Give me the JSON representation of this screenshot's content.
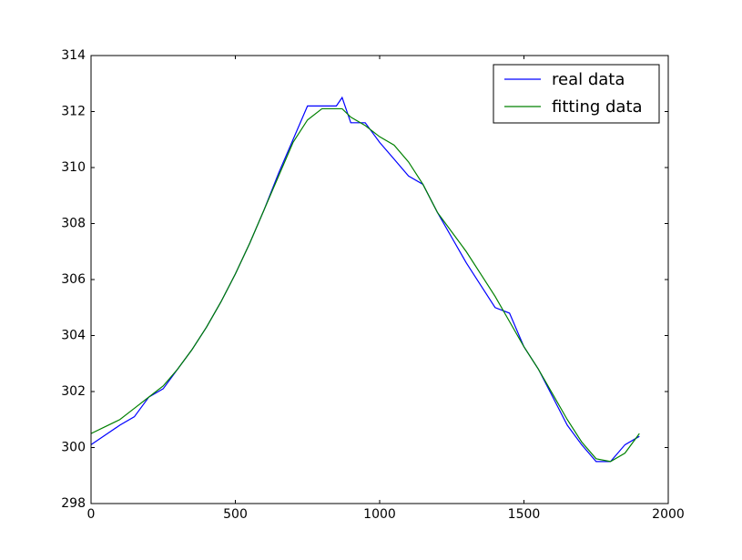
{
  "chart_data": {
    "type": "line",
    "x": [
      0,
      50,
      100,
      150,
      200,
      250,
      300,
      350,
      400,
      450,
      500,
      550,
      600,
      650,
      700,
      750,
      800,
      850,
      870,
      900,
      950,
      1000,
      1050,
      1100,
      1150,
      1200,
      1250,
      1300,
      1350,
      1400,
      1450,
      1500,
      1550,
      1600,
      1650,
      1700,
      1750,
      1800,
      1850,
      1900
    ],
    "series": [
      {
        "name": "real data",
        "color": "#0000ff",
        "values": [
          300.1,
          300.45,
          300.8,
          301.1,
          301.8,
          302.1,
          302.8,
          303.5,
          304.3,
          305.2,
          306.2,
          307.3,
          308.5,
          309.8,
          311.0,
          312.2,
          312.2,
          312.2,
          312.5,
          311.6,
          311.6,
          310.9,
          310.3,
          309.7,
          309.4,
          308.4,
          307.5,
          306.6,
          305.8,
          305.0,
          304.8,
          303.6,
          302.8,
          301.8,
          300.8,
          300.1,
          299.5,
          299.5,
          300.1,
          300.4
        ]
      },
      {
        "name": "fitting data",
        "color": "#008000",
        "values": [
          300.5,
          300.75,
          301.0,
          301.4,
          301.8,
          302.2,
          302.8,
          303.5,
          304.3,
          305.2,
          306.2,
          307.3,
          308.5,
          309.7,
          310.9,
          311.7,
          312.1,
          312.1,
          312.1,
          311.8,
          311.5,
          311.1,
          310.8,
          310.2,
          309.4,
          308.4,
          307.7,
          307.0,
          306.2,
          305.4,
          304.5,
          303.6,
          302.8,
          301.9,
          301.0,
          300.2,
          299.6,
          299.5,
          299.8,
          300.5
        ]
      }
    ],
    "xlim": [
      0,
      2000
    ],
    "xticks": [
      0,
      500,
      1000,
      1500,
      2000
    ],
    "ylim": [
      298,
      314
    ],
    "yticks": [
      298,
      300,
      302,
      304,
      306,
      308,
      310,
      312,
      314
    ],
    "legend": "upper right",
    "grid": false
  }
}
